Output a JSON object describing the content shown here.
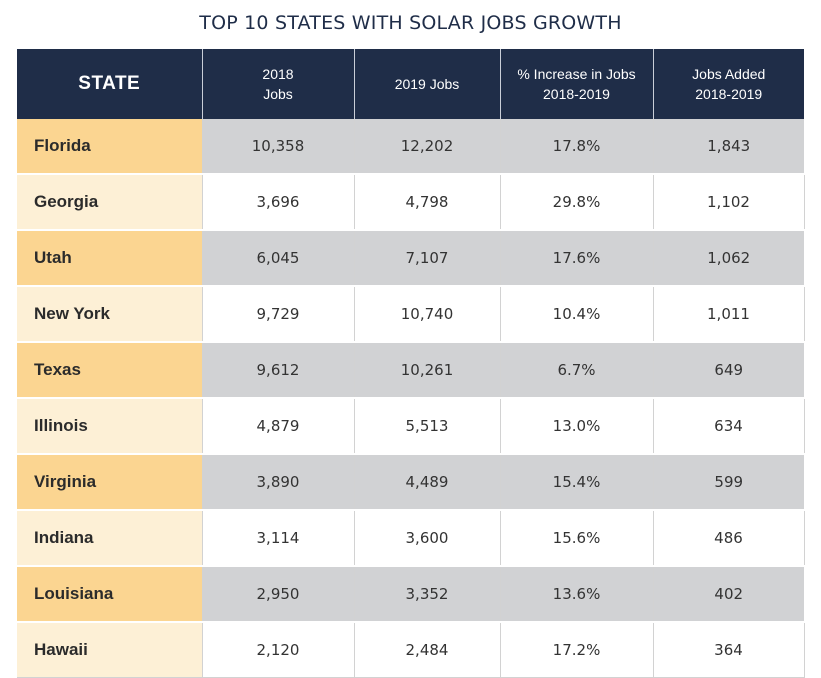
{
  "page": {
    "title": "TOP 10 STATES WITH SOLAR JOBS GROWTH"
  },
  "chart_data": {
    "type": "table",
    "title": "TOP 10 STATES WITH SOLAR JOBS GROWTH",
    "columns": [
      [
        "STATE"
      ],
      [
        "2018",
        "Jobs"
      ],
      [
        "2019 Jobs"
      ],
      [
        "% Increase in Jobs",
        "2018-2019"
      ],
      [
        "Jobs Added",
        "2018-2019"
      ]
    ],
    "rows": [
      [
        "Florida",
        "10,358",
        "12,202",
        "17.8%",
        "1,843"
      ],
      [
        "Georgia",
        "3,696",
        "4,798",
        "29.8%",
        "1,102"
      ],
      [
        "Utah",
        "6,045",
        "7,107",
        "17.6%",
        "1,062"
      ],
      [
        "New York",
        "9,729",
        "10,740",
        "10.4%",
        "1,011"
      ],
      [
        "Texas",
        "9,612",
        "10,261",
        "6.7%",
        "649"
      ],
      [
        "Illinois",
        "4,879",
        "5,513",
        "13.0%",
        "634"
      ],
      [
        "Virginia",
        "3,890",
        "4,489",
        "15.4%",
        "599"
      ],
      [
        "Indiana",
        "3,114",
        "3,600",
        "15.6%",
        "486"
      ],
      [
        "Louisiana",
        "2,950",
        "3,352",
        "13.6%",
        "402"
      ],
      [
        "Hawaii",
        "2,120",
        "2,484",
        "17.2%",
        "364"
      ]
    ]
  },
  "colors": {
    "header_bg": "#1f2d48",
    "title_text": "#1f2d48",
    "state_dark": "#fbd591",
    "state_light": "#fdf0d6",
    "row_gray": "#d1d2d4",
    "row_white": "#ffffff"
  }
}
